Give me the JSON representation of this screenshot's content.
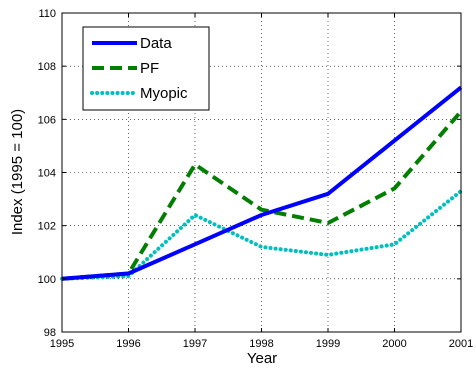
{
  "chart_data": {
    "type": "line",
    "x": [
      1995,
      1996,
      1997,
      1998,
      1999,
      2000,
      2001
    ],
    "series": [
      {
        "name": "Data",
        "values": [
          100.0,
          100.2,
          101.3,
          102.4,
          103.2,
          105.2,
          107.2
        ],
        "color": "#0000ff",
        "style": "solid"
      },
      {
        "name": "PF",
        "values": [
          100.0,
          100.2,
          104.3,
          102.6,
          102.1,
          103.4,
          106.3
        ],
        "color": "#007f00",
        "style": "dashed"
      },
      {
        "name": "Myopic",
        "values": [
          100.0,
          100.1,
          102.4,
          101.2,
          100.9,
          101.3,
          103.3
        ],
        "color": "#00bfbf",
        "style": "dotted"
      }
    ],
    "xlabel": "Year",
    "ylabel": "Index (1995 = 100)",
    "xlim": [
      1995,
      2001
    ],
    "ylim": [
      98,
      110
    ],
    "xticks": [
      "1995",
      "1996",
      "1997",
      "1998",
      "1999",
      "2000",
      "2001"
    ],
    "yticks": [
      "98",
      "100",
      "102",
      "104",
      "106",
      "108",
      "110"
    ],
    "grid": true,
    "legend": "top-left"
  }
}
